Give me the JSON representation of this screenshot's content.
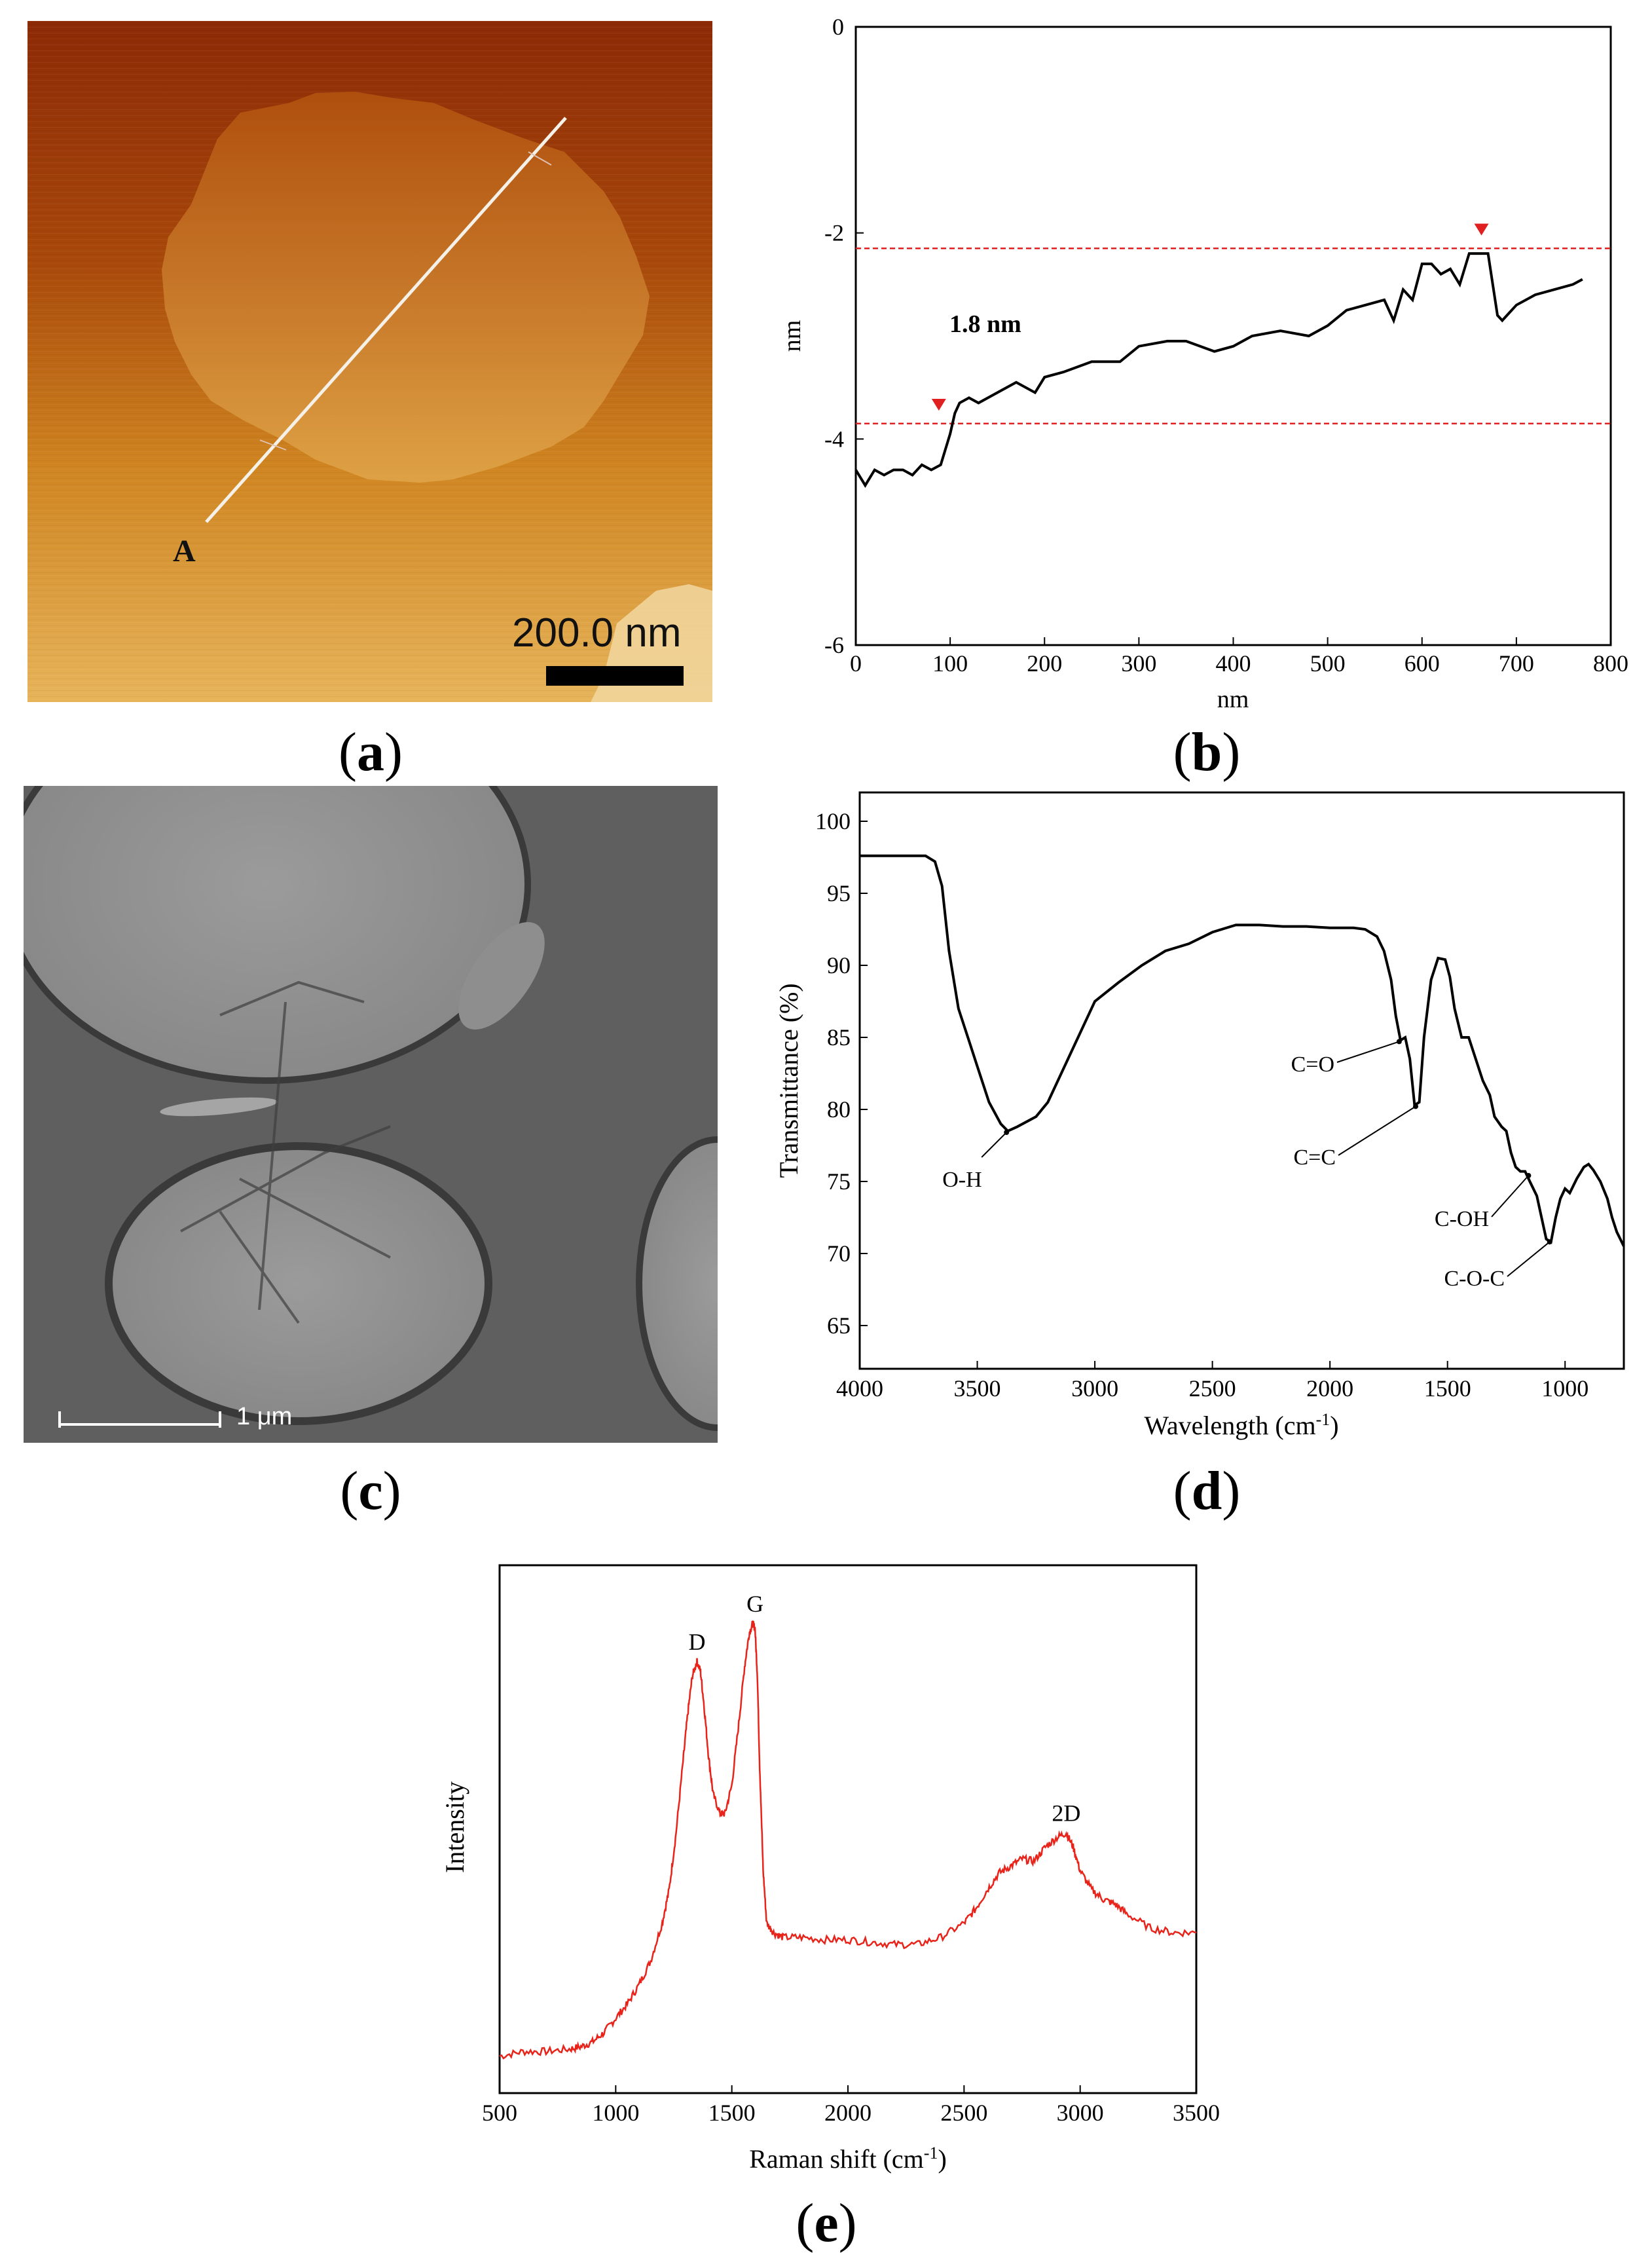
{
  "panel_a": {
    "caption": "a",
    "line_label": "A",
    "scalebar_label": "200.0 nm"
  },
  "panel_b": {
    "caption": "b",
    "annotation": "1.8 nm"
  },
  "panel_c": {
    "caption": "c",
    "scalebar_label": "1 μm"
  },
  "panel_d": {
    "caption": "d",
    "annotations": {
      "oh": "O-H",
      "co": "C=O",
      "cc": "C=C",
      "coh": "C-OH",
      "coc": "C-O-C"
    }
  },
  "panel_e": {
    "caption": "e",
    "peaks": {
      "d": "D",
      "g": "G",
      "twod": "2D"
    }
  },
  "chart_data": [
    {
      "id": "b",
      "type": "line",
      "title": "",
      "xlabel": "nm",
      "ylabel": "nm",
      "xlim": [
        0,
        800
      ],
      "ylim": [
        -6,
        0
      ],
      "xticks": [
        0,
        100,
        200,
        300,
        400,
        500,
        600,
        700,
        800
      ],
      "yticks": [
        0,
        -2,
        -4,
        -6
      ],
      "reference_lines": [
        -2.15,
        -3.85
      ],
      "markers": [
        {
          "x": 88,
          "y": -3.75
        },
        {
          "x": 663,
          "y": -2.05
        }
      ],
      "x": [
        0,
        10,
        20,
        30,
        40,
        50,
        60,
        70,
        80,
        90,
        95,
        100,
        105,
        110,
        120,
        130,
        150,
        170,
        190,
        200,
        220,
        250,
        280,
        300,
        330,
        350,
        380,
        400,
        420,
        450,
        480,
        500,
        520,
        540,
        560,
        570,
        580,
        590,
        600,
        610,
        620,
        630,
        640,
        650,
        660,
        670,
        675,
        680,
        685,
        690,
        700,
        720,
        740,
        760,
        770
      ],
      "y": [
        -4.3,
        -4.45,
        -4.3,
        -4.35,
        -4.3,
        -4.3,
        -4.35,
        -4.25,
        -4.3,
        -4.25,
        -4.1,
        -3.95,
        -3.75,
        -3.65,
        -3.6,
        -3.65,
        -3.55,
        -3.45,
        -3.55,
        -3.4,
        -3.35,
        -3.25,
        -3.25,
        -3.1,
        -3.05,
        -3.05,
        -3.15,
        -3.1,
        -3.0,
        -2.95,
        -3.0,
        -2.9,
        -2.75,
        -2.7,
        -2.65,
        -2.85,
        -2.55,
        -2.65,
        -2.3,
        -2.3,
        -2.4,
        -2.35,
        -2.5,
        -2.2,
        -2.2,
        -2.2,
        -2.5,
        -2.8,
        -2.85,
        -2.8,
        -2.7,
        -2.6,
        -2.55,
        -2.5,
        -2.45
      ]
    },
    {
      "id": "d",
      "type": "line",
      "title": "",
      "xlabel": "Wavelength (cm",
      "xlabel_sup": "-1",
      "xlabel_end": ")",
      "ylabel": "Transmittance (%)",
      "xlim": [
        4000,
        750
      ],
      "ylim": [
        62,
        102
      ],
      "xticks": [
        4000,
        3500,
        3000,
        2500,
        2000,
        1500,
        1000
      ],
      "yticks": [
        65,
        70,
        75,
        80,
        85,
        90,
        95,
        100
      ],
      "x": [
        4000,
        3900,
        3800,
        3720,
        3680,
        3650,
        3620,
        3580,
        3540,
        3500,
        3450,
        3400,
        3370,
        3330,
        3250,
        3200,
        3100,
        3000,
        2900,
        2800,
        2700,
        2600,
        2500,
        2400,
        2300,
        2200,
        2100,
        2000,
        1900,
        1850,
        1800,
        1770,
        1740,
        1720,
        1700,
        1680,
        1660,
        1640,
        1620,
        1600,
        1570,
        1540,
        1510,
        1490,
        1470,
        1440,
        1410,
        1380,
        1350,
        1320,
        1300,
        1270,
        1250,
        1230,
        1210,
        1190,
        1170,
        1150,
        1120,
        1100,
        1080,
        1060,
        1040,
        1020,
        1000,
        980,
        950,
        920,
        900,
        880,
        850,
        820,
        800,
        780,
        750
      ],
      "y": [
        97.6,
        97.6,
        97.6,
        97.6,
        97.2,
        95.5,
        91,
        87,
        85,
        83,
        80.5,
        79,
        78.5,
        78.8,
        79.5,
        80.5,
        84,
        87.5,
        88.8,
        90,
        91,
        91.5,
        92.3,
        92.8,
        92.8,
        92.7,
        92.7,
        92.6,
        92.6,
        92.5,
        92,
        91,
        89,
        86.5,
        84.8,
        85,
        83.5,
        80.3,
        80.5,
        85,
        89,
        90.5,
        90.4,
        89.2,
        87,
        85,
        85,
        83.5,
        82,
        81,
        79.5,
        78.8,
        78.5,
        77,
        76,
        75.7,
        75.7,
        75,
        74,
        72.5,
        71,
        70.8,
        72.5,
        73.8,
        74.5,
        74.2,
        75.2,
        76,
        76.2,
        75.8,
        75,
        73.8,
        72.5,
        71.5,
        70.5
      ]
    },
    {
      "id": "e",
      "type": "line",
      "title": "",
      "xlabel": "Raman shift (cm",
      "xlabel_sup": "-1",
      "xlabel_end": ")",
      "ylabel": "Intensity",
      "xlim": [
        500,
        3500
      ],
      "ylim": [
        0,
        100
      ],
      "xticks": [
        500,
        1000,
        1500,
        2000,
        2500,
        3000,
        3500
      ],
      "x": [
        500,
        600,
        700,
        800,
        850,
        900,
        950,
        1000,
        1050,
        1100,
        1150,
        1200,
        1230,
        1260,
        1290,
        1310,
        1330,
        1350,
        1365,
        1380,
        1400,
        1420,
        1450,
        1470,
        1500,
        1530,
        1555,
        1575,
        1590,
        1600,
        1610,
        1620,
        1635,
        1650,
        1680,
        1720,
        1800,
        1900,
        2000,
        2100,
        2200,
        2300,
        2400,
        2500,
        2550,
        2600,
        2650,
        2700,
        2750,
        2800,
        2850,
        2900,
        2940,
        2970,
        3000,
        3050,
        3100,
        3150,
        3200,
        3300,
        3400,
        3500
      ],
      "y": [
        5,
        6,
        6,
        6.5,
        7,
        8,
        10,
        13,
        16,
        20,
        25,
        33,
        40,
        52,
        67,
        77,
        85,
        88,
        86,
        79,
        68,
        60,
        56,
        56,
        62,
        75,
        87,
        94,
        96,
        95,
        85,
        66,
        44,
        33,
        31,
        30,
        30,
        29.5,
        29.5,
        29,
        28.5,
        28.5,
        30,
        33,
        36,
        40,
        43.5,
        45,
        46.5,
        46,
        49,
        51,
        52,
        49,
        44,
        40,
        38,
        37,
        35,
        32,
        31,
        31
      ]
    }
  ]
}
